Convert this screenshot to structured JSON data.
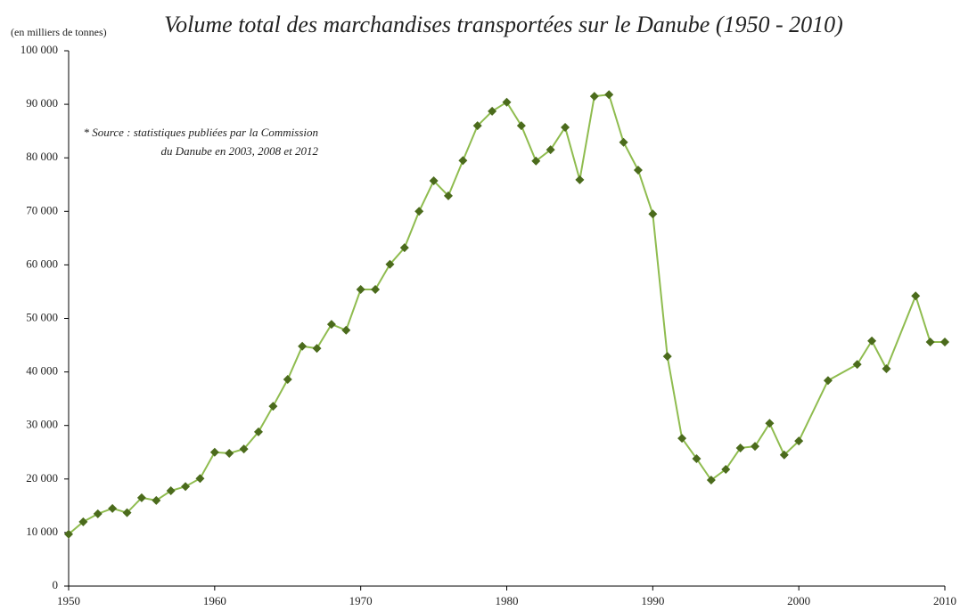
{
  "chart_data": {
    "type": "line",
    "title": "Volume total des marchandises transportées sur le Danube (1950 - 2010)",
    "y_axis_label": "(en milliers de tonnes)",
    "annotation": [
      "* Source : statistiques publiées par la Commission",
      "du Danube en 2003, 2008 et 2012"
    ],
    "x": [
      1950,
      1951,
      1952,
      1953,
      1954,
      1955,
      1956,
      1957,
      1958,
      1959,
      1960,
      1961,
      1962,
      1963,
      1964,
      1965,
      1966,
      1967,
      1968,
      1969,
      1970,
      1971,
      1972,
      1973,
      1974,
      1975,
      1976,
      1977,
      1978,
      1979,
      1980,
      1981,
      1982,
      1983,
      1984,
      1985,
      1986,
      1987,
      1988,
      1989,
      1990,
      1991,
      1992,
      1993,
      1994,
      1995,
      1996,
      1997,
      1998,
      1999,
      2000,
      2002,
      2004,
      2005,
      2006,
      2008,
      2009,
      2010
    ],
    "series": [
      {
        "color": "#8fbc4f",
        "marker_color": "#4b6b1c",
        "values": [
          9700,
          12000,
          13500,
          14500,
          13700,
          16500,
          16000,
          17800,
          18600,
          20100,
          25000,
          24800,
          25600,
          28800,
          33600,
          38600,
          44800,
          44400,
          48900,
          47800,
          55400,
          55400,
          60100,
          63200,
          70000,
          75700,
          72900,
          79500,
          86000,
          88700,
          90400,
          86000,
          79400,
          81500,
          85700,
          75900,
          91500,
          91800,
          82900,
          77700,
          69500,
          42900,
          27600,
          23800,
          19800,
          21800,
          25800,
          26100,
          30400,
          24500,
          27100,
          38400,
          41400,
          45800,
          40600,
          54200,
          45600,
          45600
        ]
      }
    ],
    "xlim": [
      1950,
      2010
    ],
    "xticks": [
      1950,
      1960,
      1970,
      1980,
      1990,
      2000,
      2010
    ],
    "ylim": [
      0,
      100000
    ],
    "yticks": [
      0,
      {
        "value": 10000,
        "label": "10 000"
      },
      {
        "value": 20000,
        "label": "20 000"
      },
      {
        "value": 30000,
        "label": "30 000"
      },
      {
        "value": 40000,
        "label": "40 000"
      },
      {
        "value": 50000,
        "label": "50 000"
      },
      {
        "value": 60000,
        "label": "60 000"
      },
      {
        "value": 70000,
        "label": "70 000"
      },
      {
        "value": 80000,
        "label": "80 000"
      },
      {
        "value": 90000,
        "label": "90 000"
      },
      {
        "value": 100000,
        "label": "100 000"
      }
    ],
    "grid": false
  }
}
